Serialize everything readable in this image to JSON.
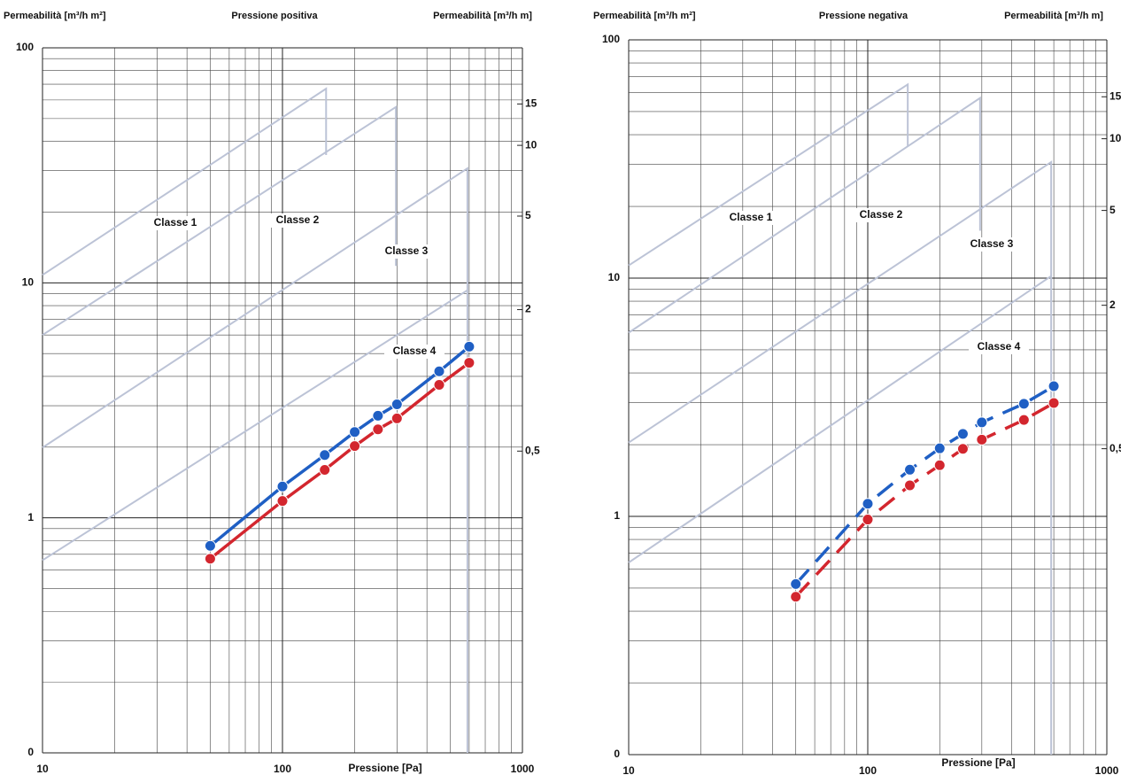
{
  "chart_data": [
    {
      "type": "line",
      "title": "Pressione positiva",
      "y_label": "Permeabilità [m³/h m²]",
      "y2_label": "Permeabilità [m³/h m]",
      "x_label": "Pressione [Pa]",
      "y_label_color": "#d3262e",
      "y2_label_color": "#1f5fc4",
      "log_x": true,
      "log_y": true,
      "grid": true,
      "xlim": [
        10,
        1000
      ],
      "xticks": [
        10,
        100,
        1000
      ],
      "ylim": [
        0.1,
        100
      ],
      "yticks": [
        {
          "value": 0.1,
          "label": "0"
        },
        1,
        10,
        100
      ],
      "y2lim": [
        0.026,
        26
      ],
      "y2ticks": [
        {
          "value": 0.5,
          "label": "0,5"
        },
        2,
        5,
        10,
        15
      ],
      "linestyle": "solid",
      "x": [
        50,
        100,
        150,
        200,
        250,
        300,
        450,
        600
      ],
      "series": [
        {
          "color": "#1f5fc4",
          "values": [
            0.76,
            1.36,
            1.85,
            2.32,
            2.72,
            3.04,
            4.2,
            5.35
          ]
        },
        {
          "color": "#d3262e",
          "values": [
            0.67,
            1.18,
            1.6,
            2.02,
            2.38,
            2.65,
            3.68,
            4.57
          ]
        }
      ],
      "class_color": "#bcc3d6",
      "classes": [
        {
          "name": "Classe 1",
          "x": [
            10,
            152,
            152
          ],
          "y": [
            10.8,
            67,
            35
          ]
        },
        {
          "name": "Classe 2",
          "x": [
            10,
            297,
            297
          ],
          "y": [
            6.0,
            56,
            11.8
          ]
        },
        {
          "name": "Classe 3",
          "x": [
            10,
            590,
            590
          ],
          "y": [
            1.99,
            30.7,
            0.1
          ]
        },
        {
          "name": "Classe 4",
          "x": [
            10,
            590
          ],
          "y": [
            0.66,
            9.3
          ]
        }
      ]
    },
    {
      "type": "line",
      "title": "Pressione negativa",
      "y_label": "Permeabilità [m³/h m²]",
      "y2_label": "Permeabilità [m³/h m]",
      "x_label": "Pressione [Pa]",
      "y_label_color": "#d3262e",
      "y2_label_color": "#1f5fc4",
      "log_x": true,
      "log_y": true,
      "grid": true,
      "xlim": [
        10,
        1000
      ],
      "xticks": [
        10,
        100,
        1000
      ],
      "ylim": [
        0.1,
        100
      ],
      "yticks": [
        {
          "value": 0.1,
          "label": "0"
        },
        1,
        10,
        100
      ],
      "y2lim": [
        0.026,
        26
      ],
      "y2ticks": [
        {
          "value": 0.5,
          "label": "0,5"
        },
        2,
        5,
        10,
        15
      ],
      "linestyle": "dashed",
      "x": [
        50,
        100,
        150,
        200,
        250,
        300,
        450,
        600
      ],
      "series": [
        {
          "color": "#1f5fc4",
          "values": [
            0.52,
            1.13,
            1.57,
            1.93,
            2.22,
            2.48,
            2.97,
            3.52
          ]
        },
        {
          "color": "#d3262e",
          "values": [
            0.46,
            0.97,
            1.35,
            1.64,
            1.92,
            2.1,
            2.54,
            2.99
          ]
        }
      ],
      "class_color": "#bcc3d6",
      "classes": [
        {
          "name": "Classe 1",
          "x": [
            10,
            147,
            147
          ],
          "y": [
            11.3,
            65,
            35.8
          ]
        },
        {
          "name": "Classe 2",
          "x": [
            10,
            295,
            295
          ],
          "y": [
            5.9,
            57,
            15.8
          ]
        },
        {
          "name": "Classe 3",
          "x": [
            10,
            585,
            585
          ],
          "y": [
            2.04,
            30.7,
            0.1
          ]
        },
        {
          "name": "Classe 4",
          "x": [
            10,
            585
          ],
          "y": [
            0.64,
            10.2
          ]
        }
      ]
    }
  ]
}
